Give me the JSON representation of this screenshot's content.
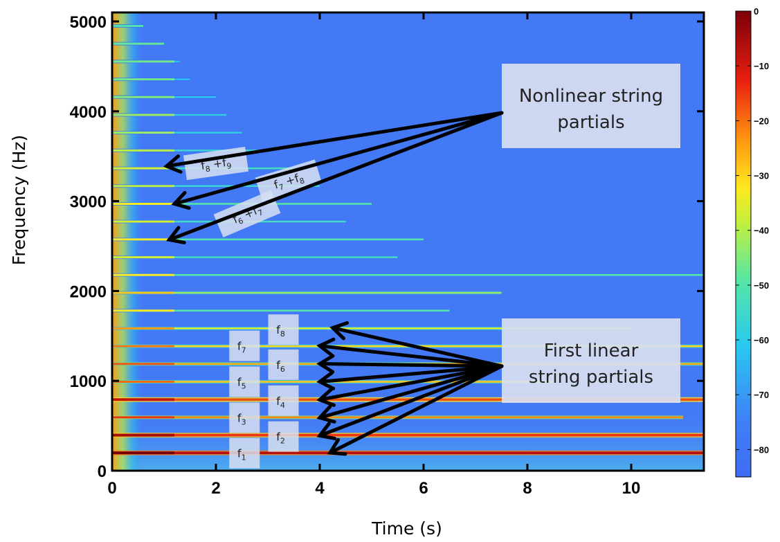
{
  "chart_data": {
    "type": "heatmap",
    "xlabel": "Time (s)",
    "ylabel": "Frequency (Hz)",
    "xlim": [
      0,
      11.4
    ],
    "ylim": [
      0,
      5100
    ],
    "x_ticks": [
      0,
      2,
      4,
      6,
      8,
      10
    ],
    "y_ticks": [
      0,
      1000,
      2000,
      3000,
      4000,
      5000
    ],
    "colorbar": {
      "range": [
        -85,
        0
      ],
      "ticks": [
        0,
        -10,
        -20,
        -30,
        -40,
        -50,
        -60,
        -70,
        -80
      ],
      "colormap": "jet"
    },
    "partials": [
      {
        "freq": 198,
        "level": -8,
        "duration": 11.4
      },
      {
        "freq": 396,
        "level": -18,
        "duration": 11.4
      },
      {
        "freq": 594,
        "level": -30,
        "duration": 11.0
      },
      {
        "freq": 792,
        "level": -22,
        "duration": 11.4
      },
      {
        "freq": 990,
        "level": -38,
        "duration": 8.5
      },
      {
        "freq": 1188,
        "level": -35,
        "duration": 11.4
      },
      {
        "freq": 1386,
        "level": -40,
        "duration": 11.4
      },
      {
        "freq": 1584,
        "level": -45,
        "duration": 10.0
      },
      {
        "freq": 1782,
        "level": -55,
        "duration": 6.5
      },
      {
        "freq": 1980,
        "level": -50,
        "duration": 7.5
      },
      {
        "freq": 2178,
        "level": -55,
        "duration": 11.4
      },
      {
        "freq": 2376,
        "level": -58,
        "duration": 5.5
      },
      {
        "freq": 2574,
        "level": -55,
        "duration": 6.0
      },
      {
        "freq": 2772,
        "level": -58,
        "duration": 4.5
      },
      {
        "freq": 2970,
        "level": -55,
        "duration": 5.0
      },
      {
        "freq": 3168,
        "level": -60,
        "duration": 4.0
      },
      {
        "freq": 3366,
        "level": -58,
        "duration": 3.5
      },
      {
        "freq": 3564,
        "level": -60,
        "duration": 3.0
      },
      {
        "freq": 3762,
        "level": -62,
        "duration": 2.5
      },
      {
        "freq": 3960,
        "level": -62,
        "duration": 2.2
      },
      {
        "freq": 4158,
        "level": -64,
        "duration": 2.0
      },
      {
        "freq": 4356,
        "level": -65,
        "duration": 1.5
      },
      {
        "freq": 4554,
        "level": -65,
        "duration": 1.3
      },
      {
        "freq": 4752,
        "level": -66,
        "duration": 1.0
      },
      {
        "freq": 4950,
        "level": -68,
        "duration": 0.6
      }
    ],
    "annotations": [
      {
        "text": [
          "Nonlinear string",
          "partials"
        ],
        "arrow_targets": [
          [
            1.05,
            3390
          ],
          [
            1.2,
            2970
          ],
          [
            1.1,
            2570
          ]
        ]
      },
      {
        "text": [
          "First linear",
          "string partials"
        ],
        "arrow_targets": [
          [
            4.25,
            1590
          ],
          [
            4.0,
            1390
          ],
          [
            4.0,
            1190
          ],
          [
            4.0,
            990
          ],
          [
            4.0,
            790
          ],
          [
            4.0,
            590
          ],
          [
            4.0,
            390
          ],
          [
            4.2,
            200
          ]
        ]
      }
    ],
    "partial_labels": [
      {
        "base": "f",
        "sub": "1",
        "x": 2.55,
        "y": 195
      },
      {
        "base": "f",
        "sub": "2",
        "x": 3.3,
        "y": 380
      },
      {
        "base": "f",
        "sub": "3",
        "x": 2.55,
        "y": 590
      },
      {
        "base": "f",
        "sub": "4",
        "x": 3.3,
        "y": 780
      },
      {
        "base": "f",
        "sub": "5",
        "x": 2.55,
        "y": 990
      },
      {
        "base": "f",
        "sub": "6",
        "x": 3.3,
        "y": 1180
      },
      {
        "base": "f",
        "sub": "7",
        "x": 2.55,
        "y": 1390
      },
      {
        "base": "f",
        "sub": "8",
        "x": 3.3,
        "y": 1570
      }
    ],
    "sum_labels": [
      {
        "a": "8",
        "b": "9",
        "x": 2.0,
        "y": 3420,
        "rot": -8
      },
      {
        "a": "7",
        "b": "8",
        "x": 3.4,
        "y": 3230,
        "rot": -17
      },
      {
        "a": "6",
        "b": "7",
        "x": 2.6,
        "y": 2860,
        "rot": -23
      }
    ]
  }
}
